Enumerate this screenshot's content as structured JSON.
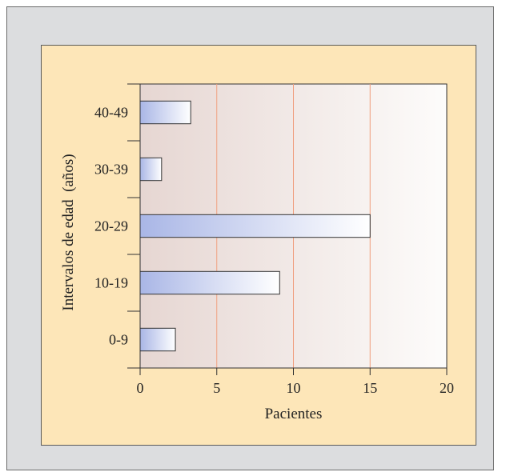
{
  "chart_data": {
    "type": "bar",
    "orientation": "horizontal",
    "categories": [
      "0-9",
      "10-19",
      "20-29",
      "30-39",
      "40-49"
    ],
    "values": [
      2.3,
      9.1,
      15,
      1.4,
      3.3
    ],
    "xlabel": "Pacientes",
    "ylabel": "Intervalos de edad  (años)",
    "xlim": [
      0,
      20
    ],
    "xticks": [
      0,
      5,
      10,
      15,
      20
    ],
    "grid": "vertical",
    "colors": {
      "page_background": "#dcdddf",
      "panel_background": "#fde6b8",
      "plot_gradient_start": "#e6d6d2",
      "plot_gradient_end": "#fdfcfb",
      "gridline": "#f0a080",
      "bar_gradient_start": "#a9b6e6",
      "bar_gradient_end": "#ffffff",
      "bar_border": "#333333"
    }
  }
}
